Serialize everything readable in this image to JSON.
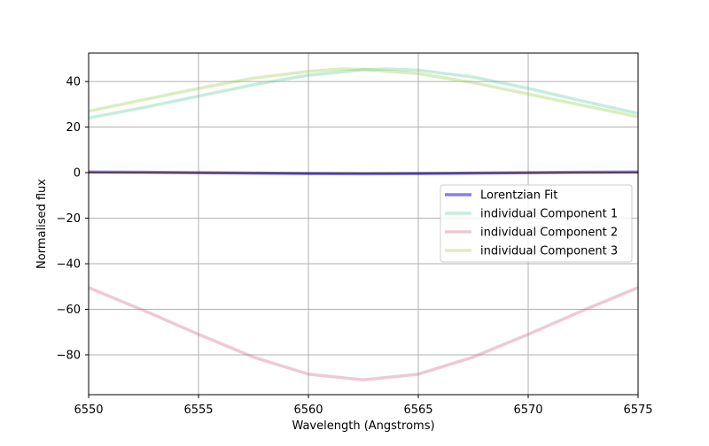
{
  "chart_data": {
    "type": "line",
    "title": "",
    "xlabel": "Wavelength (Angstroms)",
    "ylabel": "Normalised flux",
    "xlim": [
      6550,
      6575
    ],
    "ylim": [
      -97.5,
      52.5
    ],
    "xticks": [
      6550,
      6555,
      6560,
      6565,
      6570,
      6575
    ],
    "yticks": [
      40,
      20,
      0,
      -20,
      -40,
      -60,
      -80
    ],
    "ytick_labels": [
      "40",
      "20",
      "0",
      "−20",
      "−40",
      "−60",
      "−80"
    ],
    "grid": true,
    "legend_position": "center-right",
    "series": [
      {
        "name": "Lorentzian Fit",
        "color": "#0000ff",
        "opacity": 0.5,
        "x": [
          6550,
          6552.5,
          6555,
          6557.5,
          6560,
          6562.5,
          6565,
          6567.5,
          6570,
          6572.5,
          6575
        ],
        "y": [
          0.3,
          0.2,
          0.0,
          -0.2,
          -0.4,
          -0.5,
          -0.4,
          -0.2,
          0.0,
          0.2,
          0.3
        ]
      },
      {
        "name": "",
        "color": "#5a2d1a",
        "opacity": 1.0,
        "x": [
          6550,
          6552.5,
          6555,
          6557.5,
          6560,
          6562.5,
          6565,
          6567.5,
          6570,
          6572.5,
          6575
        ],
        "y": [
          0.1,
          0.0,
          -0.1,
          -0.2,
          -0.3,
          -0.3,
          -0.3,
          -0.2,
          -0.1,
          0.0,
          0.1
        ]
      },
      {
        "name": "individual Component 1",
        "color": "#5ccc9c",
        "opacity": 0.35,
        "x": [
          6550,
          6552.5,
          6555,
          6557.5,
          6560,
          6562.5,
          6563.5,
          6565,
          6567.5,
          6570,
          6572.5,
          6575
        ],
        "y": [
          24.0,
          28.6,
          33.6,
          38.6,
          42.8,
          45.2,
          45.5,
          45.0,
          42.0,
          37.0,
          31.4,
          26.0
        ]
      },
      {
        "name": "individual Component 2",
        "color": "#cc6680",
        "opacity": 0.35,
        "x": [
          6550,
          6552.5,
          6555,
          6557.5,
          6560,
          6562.5,
          6565,
          6567.5,
          6570,
          6572.5,
          6575
        ],
        "y": [
          -50.5,
          -60.5,
          -71.0,
          -81.0,
          -88.5,
          -91.0,
          -88.5,
          -81.0,
          -71.0,
          -60.5,
          -50.5
        ]
      },
      {
        "name": "individual Component 3",
        "color": "#99cc4d",
        "opacity": 0.35,
        "x": [
          6550,
          6552.5,
          6555,
          6557.5,
          6560,
          6561.5,
          6562.5,
          6565,
          6567.5,
          6570,
          6572.5,
          6575
        ],
        "y": [
          27.0,
          32.0,
          37.0,
          41.5,
          44.5,
          45.5,
          45.3,
          43.5,
          39.5,
          34.5,
          29.5,
          24.5
        ]
      }
    ]
  }
}
